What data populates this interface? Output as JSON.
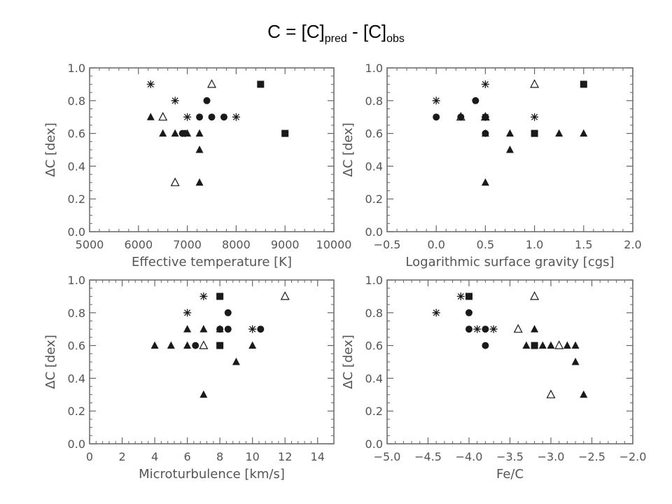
{
  "title": {
    "main": "C = [C]",
    "sub1": "pred",
    "mid": " - [C]",
    "sub2": "obs"
  },
  "chart_data": [
    {
      "type": "scatter",
      "xlabel": "Effective temperature [K]",
      "ylabel": "ΔC [dex]",
      "xlim": [
        5000,
        10000
      ],
      "ylim": [
        0.0,
        1.0
      ],
      "xticks": [
        5000,
        6000,
        7000,
        8000,
        9000,
        10000
      ],
      "xtick_labels": [
        "5000",
        "6000",
        "7000",
        "8000",
        "9000",
        "10000"
      ],
      "yticks": [
        0.0,
        0.2,
        0.4,
        0.6,
        0.8,
        1.0
      ],
      "ytick_labels": [
        "0.0",
        "0.2",
        "0.4",
        "0.6",
        "0.8",
        "1.0"
      ],
      "grid": false,
      "series": [
        {
          "marker": "asterisk",
          "x": [
            6250,
            6750,
            7000,
            8000
          ],
          "y": [
            0.9,
            0.8,
            0.7,
            0.7
          ]
        },
        {
          "marker": "open-triangle",
          "x": [
            7500,
            6500,
            6750
          ],
          "y": [
            0.9,
            0.7,
            0.3
          ]
        },
        {
          "marker": "square",
          "x": [
            8500,
            9000
          ],
          "y": [
            0.9,
            0.6
          ]
        },
        {
          "marker": "circle",
          "x": [
            7400,
            7250,
            7500,
            7750,
            6900,
            6950
          ],
          "y": [
            0.8,
            0.7,
            0.7,
            0.7,
            0.6,
            0.6
          ]
        },
        {
          "marker": "triangle",
          "x": [
            6250,
            6500,
            6750,
            7000,
            7250,
            7250,
            7250
          ],
          "y": [
            0.7,
            0.6,
            0.6,
            0.6,
            0.6,
            0.5,
            0.3
          ]
        }
      ]
    },
    {
      "type": "scatter",
      "xlabel": "Logarithmic surface gravity [cgs]",
      "ylabel": "ΔC [dex]",
      "xlim": [
        -0.5,
        2.0
      ],
      "ylim": [
        0.0,
        1.0
      ],
      "xticks": [
        -0.5,
        0.0,
        0.5,
        1.0,
        1.5,
        2.0
      ],
      "xtick_labels": [
        "−0.5",
        "0.0",
        "0.5",
        "1.0",
        "1.5",
        "2.0"
      ],
      "yticks": [
        0.0,
        0.2,
        0.4,
        0.6,
        0.8,
        1.0
      ],
      "ytick_labels": [
        "0.0",
        "0.2",
        "0.4",
        "0.6",
        "0.8",
        "1.0"
      ],
      "grid": false,
      "series": [
        {
          "marker": "asterisk",
          "x": [
            0.0,
            0.5,
            0.5,
            1.0
          ],
          "y": [
            0.8,
            0.9,
            0.7,
            0.7
          ]
        },
        {
          "marker": "open-triangle",
          "x": [
            1.0,
            0.25,
            0.5
          ],
          "y": [
            0.9,
            0.7,
            0.7
          ]
        },
        {
          "marker": "square",
          "x": [
            1.5,
            1.0
          ],
          "y": [
            0.9,
            0.6
          ]
        },
        {
          "marker": "circle",
          "x": [
            0.4,
            0.0,
            0.25,
            0.5,
            0.5
          ],
          "y": [
            0.8,
            0.7,
            0.7,
            0.7,
            0.6
          ]
        },
        {
          "marker": "triangle",
          "x": [
            0.5,
            0.75,
            1.25,
            1.5,
            0.75,
            0.5
          ],
          "y": [
            0.6,
            0.6,
            0.6,
            0.6,
            0.5,
            0.3
          ]
        }
      ]
    },
    {
      "type": "scatter",
      "xlabel": "Microturbulence [km/s]",
      "ylabel": "ΔC [dex]",
      "xlim": [
        0,
        15
      ],
      "ylim": [
        0.0,
        1.0
      ],
      "xticks": [
        0,
        2,
        4,
        6,
        8,
        10,
        12,
        14
      ],
      "xtick_labels": [
        "0",
        "2",
        "4",
        "6",
        "8",
        "10",
        "12",
        "14"
      ],
      "yticks": [
        0.0,
        0.2,
        0.4,
        0.6,
        0.8,
        1.0
      ],
      "ytick_labels": [
        "0.0",
        "0.2",
        "0.4",
        "0.6",
        "0.8",
        "1.0"
      ],
      "grid": false,
      "series": [
        {
          "marker": "asterisk",
          "x": [
            7,
            6,
            10
          ],
          "y": [
            0.9,
            0.8,
            0.7
          ]
        },
        {
          "marker": "open-triangle",
          "x": [
            12,
            7
          ],
          "y": [
            0.9,
            0.6
          ]
        },
        {
          "marker": "square",
          "x": [
            8,
            8
          ],
          "y": [
            0.9,
            0.6
          ]
        },
        {
          "marker": "circle",
          "x": [
            8.5,
            8,
            8.5,
            10.5,
            6.5
          ],
          "y": [
            0.8,
            0.7,
            0.7,
            0.7,
            0.6
          ]
        },
        {
          "marker": "triangle",
          "x": [
            6,
            7,
            8,
            4,
            5,
            6,
            10,
            9,
            7
          ],
          "y": [
            0.7,
            0.7,
            0.7,
            0.6,
            0.6,
            0.6,
            0.6,
            0.5,
            0.3
          ]
        }
      ]
    },
    {
      "type": "scatter",
      "xlabel": "Fe/C",
      "ylabel": "ΔC [dex]",
      "xlim": [
        -5.0,
        -2.0
      ],
      "ylim": [
        0.0,
        1.0
      ],
      "xticks": [
        -5.0,
        -4.5,
        -4.0,
        -3.5,
        -3.0,
        -2.5,
        -2.0
      ],
      "xtick_labels": [
        "−5.0",
        "−4.5",
        "−4.0",
        "−3.5",
        "−3.0",
        "−2.5",
        "−2.0"
      ],
      "yticks": [
        0.0,
        0.2,
        0.4,
        0.6,
        0.8,
        1.0
      ],
      "ytick_labels": [
        "0.0",
        "0.2",
        "0.4",
        "0.6",
        "0.8",
        "1.0"
      ],
      "grid": false,
      "series": [
        {
          "marker": "asterisk",
          "x": [
            -4.1,
            -4.4,
            -3.9,
            -3.7
          ],
          "y": [
            0.9,
            0.8,
            0.7,
            0.7
          ]
        },
        {
          "marker": "open-triangle",
          "x": [
            -3.2,
            -3.4,
            -2.9,
            -3.0
          ],
          "y": [
            0.9,
            0.7,
            0.6,
            0.3
          ]
        },
        {
          "marker": "square",
          "x": [
            -4.0,
            -3.2
          ],
          "y": [
            0.9,
            0.6
          ]
        },
        {
          "marker": "circle",
          "x": [
            -4.0,
            -4.0,
            -3.8,
            -3.8
          ],
          "y": [
            0.8,
            0.7,
            0.7,
            0.6
          ]
        },
        {
          "marker": "triangle",
          "x": [
            -3.2,
            -3.3,
            -3.1,
            -3.0,
            -2.8,
            -2.7,
            -2.7,
            -2.6
          ],
          "y": [
            0.7,
            0.6,
            0.6,
            0.6,
            0.6,
            0.6,
            0.5,
            0.3
          ]
        }
      ]
    }
  ]
}
